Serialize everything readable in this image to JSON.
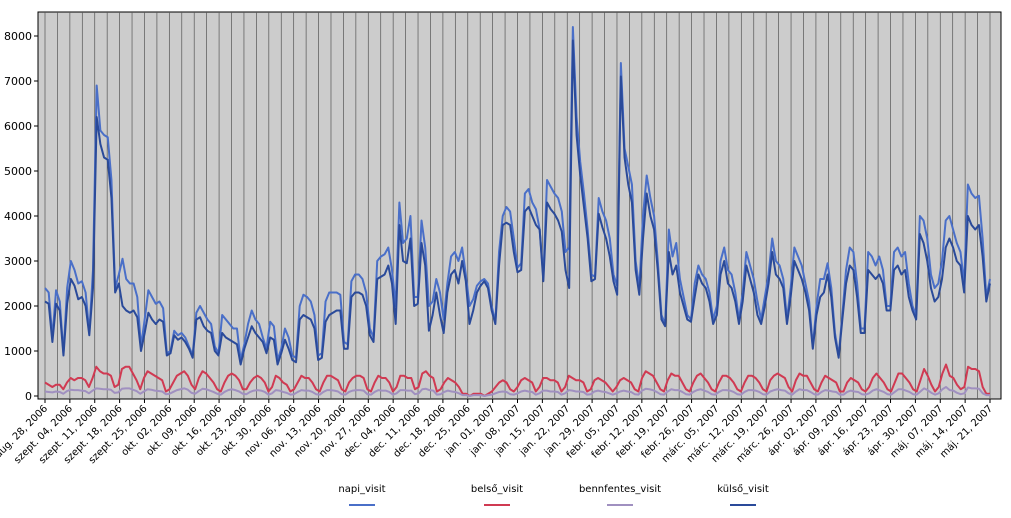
{
  "chart_data": {
    "type": "line",
    "ylim": [
      0,
      8000
    ],
    "y_ticks": [
      0,
      1000,
      2000,
      3000,
      4000,
      5000,
      6000,
      7000,
      8000
    ],
    "x_tick_labels": [
      "aug. 28, 2006",
      "szept. 04, 2006",
      "szept. 11, 2006",
      "szept. 18, 2006",
      "szept. 25, 2006",
      "okt. 02, 2006",
      "okt. 09, 2006",
      "okt. 16, 2006",
      "okt. 23, 2006",
      "okt. 30, 2006",
      "nov. 06, 2006",
      "nov. 13, 2006",
      "nov. 20, 2006",
      "nov. 27, 2006",
      "dec. 04, 2006",
      "dec. 11, 2006",
      "dec. 18, 2006",
      "dec. 25, 2006",
      "jan. 01, 2007",
      "jan. 08, 2007",
      "jan. 15, 2007",
      "jan. 22, 2007",
      "jan. 29, 2007",
      "febr. 05, 2007",
      "febr. 12, 2007",
      "febr. 19, 2007",
      "febr. 26, 2007",
      "márc. 05, 2007",
      "márc. 12, 2007",
      "márc. 19, 2007",
      "márc. 26, 2007",
      "ápr. 02, 2007",
      "ápr. 09, 2007",
      "ápr. 16, 2007",
      "ápr. 23, 2007",
      "ápr. 30, 2007",
      "máj. 07, 2007",
      "máj. 14, 2007",
      "máj. 21, 2007"
    ],
    "grid": true,
    "legend_position": "bottom",
    "series": [
      {
        "name": "napi_visit",
        "color": "#4a6fc8",
        "values": [
          2400,
          2300,
          1300,
          2350,
          2100,
          950,
          2400,
          3000,
          2800,
          2500,
          2550,
          2300,
          1400,
          2800,
          6900,
          5900,
          5800,
          5750,
          4800,
          2400,
          2700,
          3050,
          2600,
          2500,
          2500,
          2200,
          1100,
          1700,
          2350,
          2200,
          2050,
          2100,
          1950,
          950,
          1000,
          1450,
          1350,
          1400,
          1300,
          1100,
          900,
          1850,
          2000,
          1850,
          1700,
          1600,
          1100,
          950,
          1800,
          1700,
          1600,
          1500,
          1500,
          800,
          1150,
          1600,
          1900,
          1700,
          1600,
          1300,
          1050,
          1650,
          1550,
          800,
          1050,
          1500,
          1300,
          900,
          850,
          2000,
          2250,
          2200,
          2100,
          1800,
          900,
          950,
          2100,
          2300,
          2300,
          2300,
          2250,
          1200,
          1150,
          2550,
          2700,
          2700,
          2600,
          2300,
          1500,
          1300,
          3000,
          3100,
          3150,
          3300,
          2800,
          2000,
          4300,
          3400,
          3500,
          4000,
          2200,
          2200,
          3900,
          3300,
          2000,
          2100,
          2600,
          2300,
          1700,
          2500,
          3100,
          3200,
          3000,
          3300,
          2700,
          2000,
          2150,
          2450,
          2550,
          2600,
          2500,
          2000,
          1650,
          3200,
          4000,
          4200,
          4100,
          3500,
          2850,
          2950,
          4500,
          4600,
          4300,
          4150,
          3700,
          2650,
          4800,
          4650,
          4500,
          4400,
          4100,
          3200,
          3300,
          8200,
          6200,
          5200,
          4500,
          3700,
          2700,
          2650,
          4400,
          4100,
          3900,
          3500,
          2700,
          2450,
          7400,
          5500,
          5100,
          4700,
          3000,
          2400,
          4000,
          4900,
          4400,
          4000,
          3000,
          1800,
          1600,
          3700,
          3100,
          3400,
          2600,
          2200,
          1800,
          1700,
          2500,
          2900,
          2700,
          2600,
          2300,
          1700,
          2000,
          3000,
          3300,
          2800,
          2700,
          2300,
          1700,
          2300,
          3200,
          2900,
          2600,
          2100,
          1700,
          2200,
          2700,
          3500,
          3000,
          2900,
          2600,
          1700,
          2400,
          3300,
          3100,
          2900,
          2500,
          2100,
          1100,
          2000,
          2600,
          2600,
          2950,
          2400,
          1400,
          900,
          1800,
          2800,
          3300,
          3200,
          2500,
          1500,
          1500,
          3200,
          3100,
          2900,
          3100,
          2800,
          2000,
          2000,
          3200,
          3300,
          3100,
          3200,
          2500,
          2000,
          1800,
          4000,
          3900,
          3500,
          2700,
          2400,
          2500,
          3000,
          3900,
          4000,
          3700,
          3400,
          3200,
          2500,
          4700,
          4500,
          4400,
          4450,
          3500,
          2200,
          2600
        ]
      },
      {
        "name": "belső_visit",
        "color": "#d03a52",
        "values": [
          300,
          250,
          200,
          250,
          250,
          150,
          300,
          400,
          350,
          400,
          400,
          350,
          200,
          400,
          650,
          550,
          500,
          500,
          450,
          200,
          250,
          600,
          650,
          650,
          500,
          350,
          150,
          400,
          550,
          500,
          450,
          400,
          350,
          100,
          150,
          300,
          450,
          500,
          550,
          450,
          250,
          150,
          400,
          550,
          500,
          400,
          300,
          150,
          100,
          300,
          450,
          500,
          450,
          350,
          150,
          150,
          300,
          400,
          450,
          400,
          300,
          100,
          200,
          450,
          400,
          300,
          250,
          100,
          150,
          300,
          450,
          400,
          400,
          300,
          150,
          100,
          300,
          450,
          450,
          400,
          350,
          150,
          100,
          300,
          400,
          450,
          450,
          400,
          150,
          100,
          300,
          450,
          400,
          400,
          300,
          100,
          200,
          450,
          450,
          400,
          400,
          150,
          200,
          500,
          550,
          450,
          400,
          100,
          150,
          300,
          400,
          350,
          300,
          200,
          50,
          50,
          0,
          50,
          50,
          50,
          0,
          50,
          100,
          200,
          300,
          350,
          300,
          150,
          100,
          200,
          350,
          400,
          350,
          300,
          100,
          200,
          400,
          400,
          350,
          350,
          300,
          100,
          200,
          450,
          400,
          350,
          350,
          300,
          100,
          150,
          350,
          400,
          350,
          300,
          200,
          100,
          200,
          350,
          400,
          350,
          300,
          150,
          100,
          400,
          550,
          500,
          450,
          300,
          150,
          100,
          350,
          500,
          450,
          450,
          300,
          150,
          100,
          300,
          450,
          500,
          400,
          300,
          150,
          100,
          300,
          450,
          450,
          400,
          300,
          150,
          100,
          300,
          450,
          450,
          400,
          300,
          150,
          100,
          350,
          450,
          500,
          450,
          400,
          200,
          100,
          350,
          500,
          450,
          450,
          300,
          150,
          100,
          300,
          450,
          400,
          350,
          300,
          100,
          100,
          300,
          400,
          350,
          300,
          150,
          100,
          200,
          400,
          500,
          400,
          300,
          150,
          100,
          300,
          500,
          500,
          400,
          300,
          150,
          100,
          350,
          600,
          450,
          250,
          100,
          200,
          500,
          700,
          450,
          400,
          250,
          150,
          200,
          650,
          600,
          600,
          550,
          200,
          50,
          50
        ]
      },
      {
        "name": "bennfentes_visit",
        "color": "#a090c0",
        "values": [
          100,
          90,
          80,
          100,
          90,
          50,
          110,
          140,
          130,
          130,
          120,
          110,
          60,
          120,
          170,
          160,
          150,
          150,
          140,
          70,
          80,
          160,
          170,
          170,
          140,
          110,
          50,
          100,
          150,
          140,
          120,
          110,
          100,
          40,
          50,
          90,
          130,
          150,
          170,
          140,
          70,
          50,
          110,
          160,
          150,
          120,
          90,
          50,
          30,
          90,
          130,
          150,
          130,
          100,
          50,
          40,
          90,
          120,
          130,
          120,
          90,
          30,
          60,
          130,
          120,
          90,
          70,
          30,
          40,
          90,
          130,
          120,
          120,
          90,
          40,
          30,
          90,
          130,
          130,
          120,
          100,
          40,
          30,
          90,
          120,
          130,
          130,
          120,
          40,
          30,
          90,
          130,
          120,
          120,
          90,
          30,
          60,
          130,
          130,
          120,
          120,
          40,
          60,
          150,
          160,
          130,
          120,
          30,
          40,
          90,
          120,
          100,
          90,
          60,
          20,
          20,
          0,
          20,
          20,
          20,
          0,
          20,
          30,
          60,
          90,
          100,
          90,
          40,
          30,
          60,
          100,
          120,
          100,
          90,
          30,
          60,
          120,
          120,
          100,
          100,
          90,
          30,
          60,
          130,
          120,
          100,
          100,
          90,
          30,
          40,
          100,
          120,
          100,
          90,
          60,
          30,
          60,
          100,
          120,
          100,
          90,
          40,
          30,
          120,
          160,
          150,
          130,
          90,
          40,
          30,
          100,
          150,
          130,
          130,
          90,
          40,
          30,
          90,
          130,
          150,
          120,
          90,
          40,
          30,
          90,
          130,
          130,
          120,
          90,
          40,
          30,
          90,
          130,
          130,
          120,
          90,
          40,
          30,
          100,
          130,
          150,
          130,
          120,
          60,
          30,
          100,
          150,
          130,
          130,
          90,
          40,
          30,
          90,
          130,
          120,
          100,
          90,
          30,
          30,
          90,
          120,
          100,
          90,
          40,
          30,
          60,
          120,
          150,
          120,
          90,
          40,
          30,
          90,
          150,
          150,
          120,
          90,
          40,
          30,
          100,
          170,
          130,
          70,
          30,
          60,
          150,
          200,
          130,
          120,
          70,
          40,
          60,
          190,
          170,
          170,
          160,
          60,
          20,
          20
        ]
      },
      {
        "name": "külső_visit",
        "color": "#2a4a9a",
        "values": [
          2100,
          2050,
          1200,
          2050,
          1900,
          900,
          2050,
          2600,
          2450,
          2150,
          2200,
          2000,
          1350,
          2400,
          6200,
          5600,
          5300,
          5250,
          4400,
          2300,
          2500,
          2000,
          1900,
          1850,
          1900,
          1750,
          1000,
          1400,
          1850,
          1700,
          1600,
          1700,
          1650,
          900,
          950,
          1350,
          1250,
          1300,
          1200,
          1050,
          850,
          1700,
          1750,
          1550,
          1450,
          1400,
          1000,
          900,
          1400,
          1300,
          1250,
          1200,
          1150,
          700,
          1050,
          1300,
          1550,
          1400,
          1300,
          1200,
          950,
          1300,
          1250,
          700,
          950,
          1250,
          1050,
          800,
          750,
          1700,
          1800,
          1750,
          1700,
          1500,
          800,
          850,
          1650,
          1800,
          1850,
          1900,
          1900,
          1050,
          1050,
          2200,
          2300,
          2300,
          2250,
          2000,
          1350,
          1200,
          2600,
          2650,
          2700,
          2900,
          2500,
          1600,
          3800,
          3000,
          2950,
          3500,
          2000,
          2050,
          3400,
          2900,
          1450,
          1800,
          2300,
          1800,
          1400,
          2300,
          2700,
          2800,
          2500,
          3000,
          2550,
          1600,
          1900,
          2300,
          2450,
          2550,
          2400,
          1900,
          1600,
          2900,
          3800,
          3850,
          3800,
          3200,
          2750,
          2800,
          4100,
          4200,
          4000,
          3800,
          3700,
          2550,
          4300,
          4150,
          4050,
          3900,
          3650,
          2800,
          2400,
          7900,
          5800,
          4900,
          4200,
          3500,
          2550,
          2600,
          4050,
          3750,
          3500,
          3100,
          2550,
          2250,
          7100,
          5300,
          4700,
          4300,
          2800,
          2250,
          3500,
          4500,
          4000,
          3700,
          2800,
          1700,
          1550,
          3200,
          2700,
          2900,
          2300,
          2000,
          1700,
          1650,
          2200,
          2700,
          2500,
          2400,
          2100,
          1600,
          1800,
          2700,
          3000,
          2500,
          2400,
          2100,
          1600,
          2100,
          2900,
          2600,
          2300,
          1800,
          1600,
          2000,
          2500,
          3200,
          2700,
          2600,
          2400,
          1600,
          2200,
          3000,
          2800,
          2600,
          2300,
          1900,
          1050,
          1800,
          2200,
          2300,
          2700,
          2200,
          1300,
          850,
          1700,
          2500,
          2900,
          2800,
          2200,
          1400,
          1400,
          2800,
          2700,
          2600,
          2700,
          2500,
          1900,
          1900,
          2800,
          2900,
          2700,
          2800,
          2200,
          1900,
          1700,
          3600,
          3400,
          3000,
          2400,
          2100,
          2200,
          2600,
          3300,
          3500,
          3300,
          3000,
          2900,
          2300,
          4000,
          3800,
          3700,
          3800,
          3100,
          2100,
          2500
        ]
      }
    ]
  }
}
